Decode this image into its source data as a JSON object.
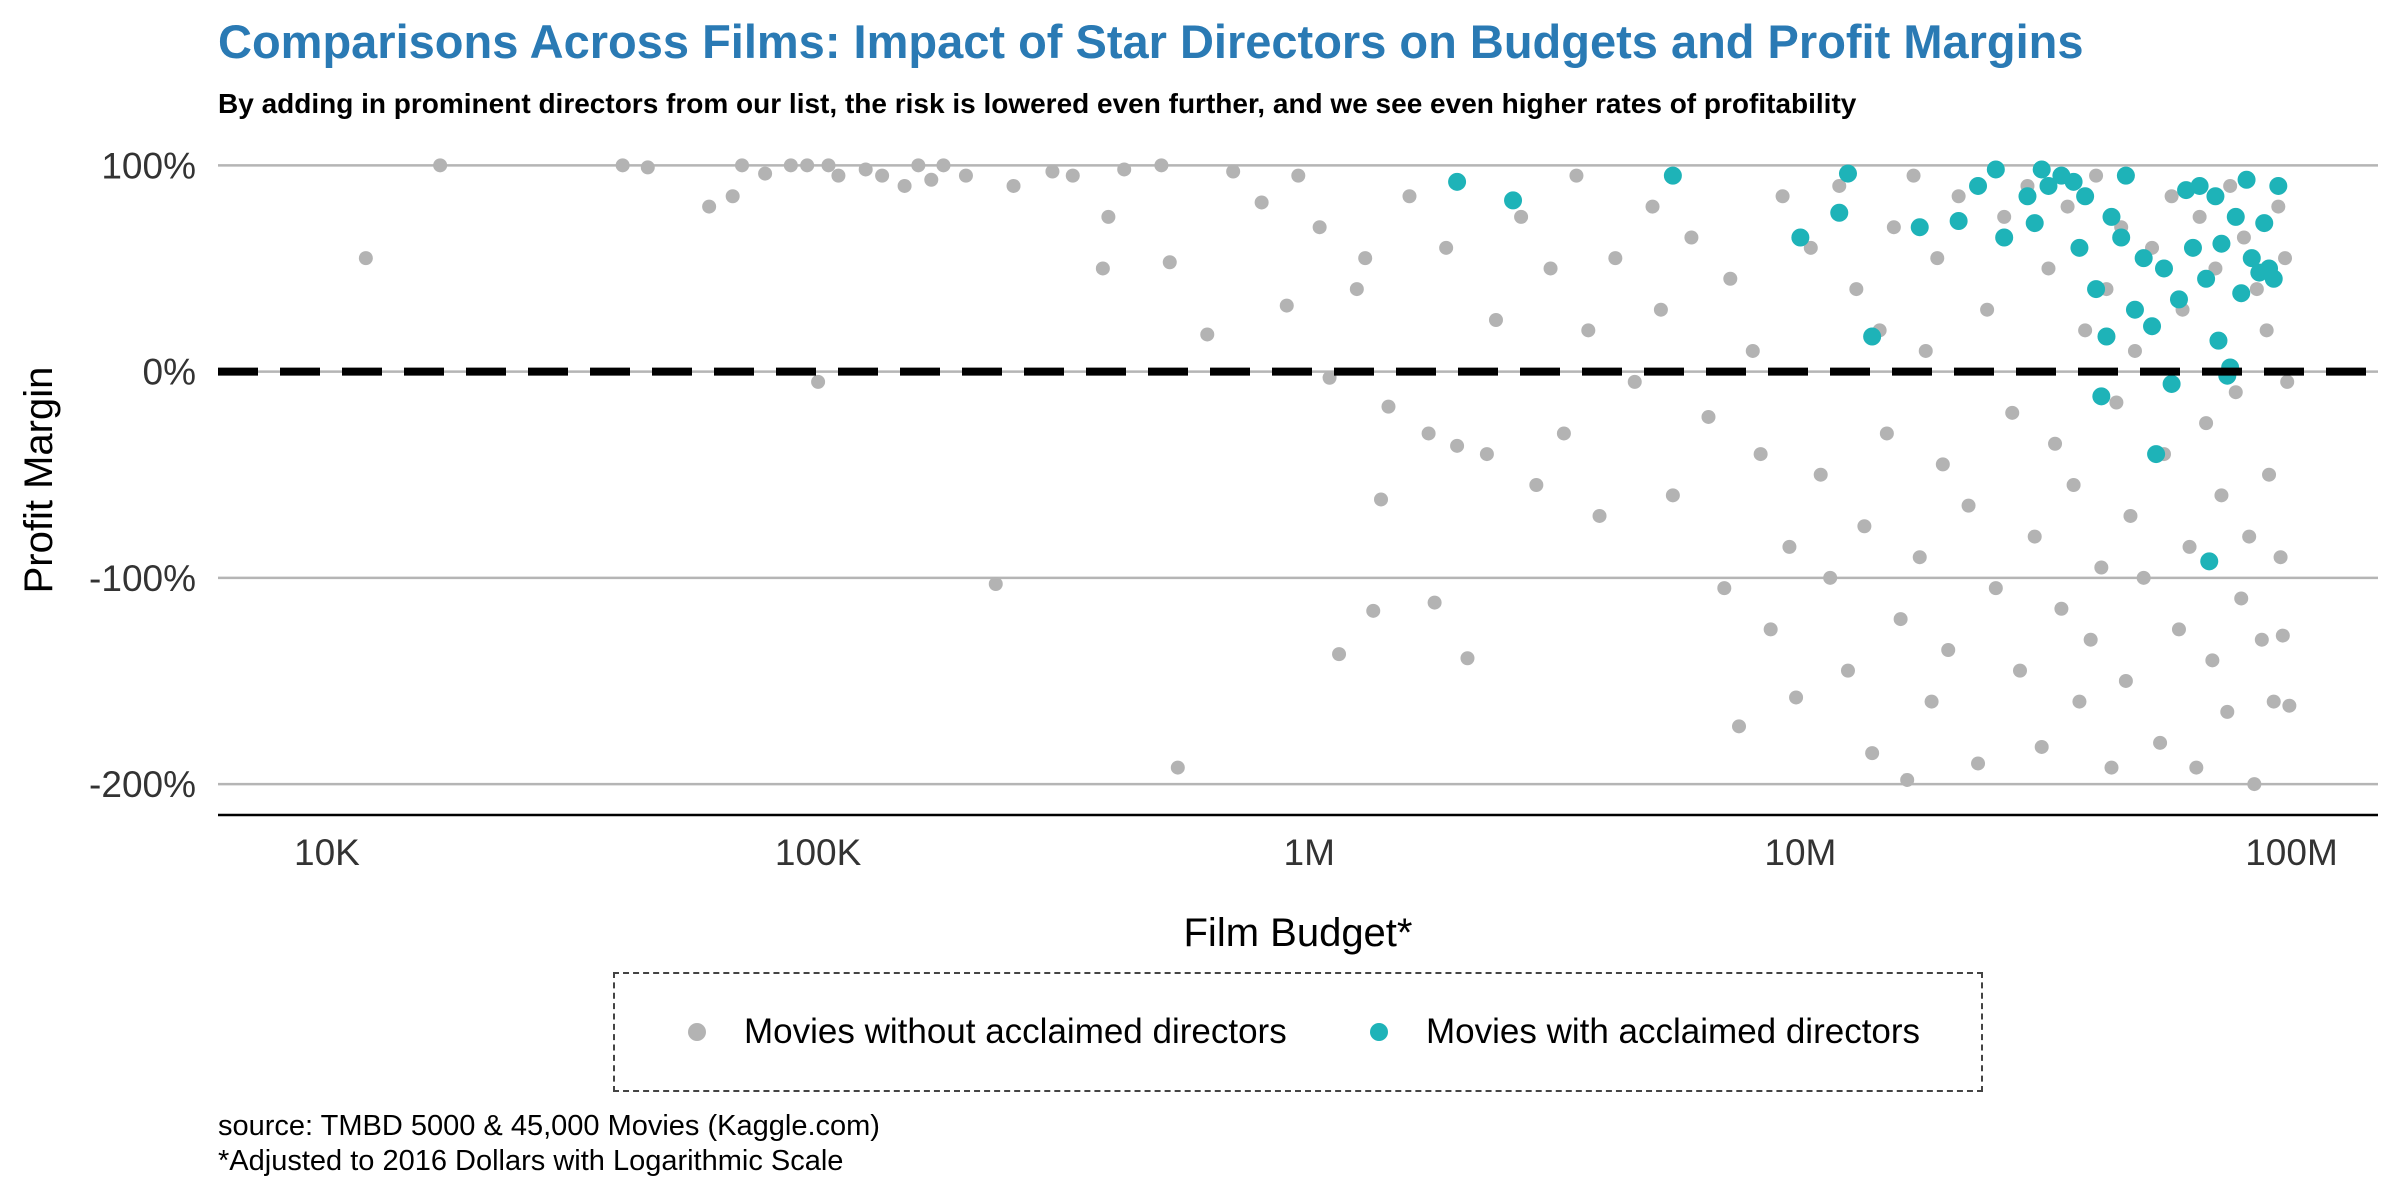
{
  "chart_data": {
    "type": "scatter",
    "title": "Comparisons Across Films: Impact of Star Directors on Budgets and Profit Margins",
    "subtitle": "By adding in prominent directors from our list, the risk is lowered even further, and we see even higher rates of profitability",
    "xlabel": "Film Budget*",
    "ylabel": "Profit Margin",
    "x_scale": "log",
    "xlim": [
      6000,
      150000000
    ],
    "ylim": [
      -2.15,
      1.05
    ],
    "x_ticks": [
      10000,
      100000,
      1000000,
      10000000,
      100000000
    ],
    "x_tick_labels": [
      "10K",
      "100K",
      "1M",
      "10M",
      "100M"
    ],
    "y_ticks": [
      1,
      0,
      -1,
      -2
    ],
    "y_tick_labels": [
      "100%",
      "0%",
      "-100%",
      "-200%"
    ],
    "grid": "horizontal",
    "reference_line": {
      "y": 0,
      "style": "dashed"
    },
    "legend_position": "bottom",
    "colors": {
      "without": "#b3b3b3",
      "with": "#1eb3b8"
    },
    "series": [
      {
        "name": "Movies without acclaimed directors",
        "points": [
          [
            12000,
            0.55
          ],
          [
            17000,
            1.0
          ],
          [
            40000,
            1.0
          ],
          [
            45000,
            0.99
          ],
          [
            60000,
            0.8
          ],
          [
            67000,
            0.85
          ],
          [
            70000,
            1.0
          ],
          [
            78000,
            0.96
          ],
          [
            88000,
            1.0
          ],
          [
            95000,
            1.0
          ],
          [
            100000,
            -0.05
          ],
          [
            105000,
            1.0
          ],
          [
            110000,
            0.95
          ],
          [
            125000,
            0.98
          ],
          [
            135000,
            0.95
          ],
          [
            150000,
            0.9
          ],
          [
            160000,
            1.0
          ],
          [
            170000,
            0.93
          ],
          [
            180000,
            1.0
          ],
          [
            200000,
            0.95
          ],
          [
            230000,
            -1.03
          ],
          [
            250000,
            0.9
          ],
          [
            300000,
            0.97
          ],
          [
            330000,
            0.95
          ],
          [
            380000,
            0.5
          ],
          [
            390000,
            0.75
          ],
          [
            420000,
            0.98
          ],
          [
            500000,
            1.0
          ],
          [
            520000,
            0.53
          ],
          [
            540000,
            -1.92
          ],
          [
            620000,
            0.18
          ],
          [
            700000,
            0.97
          ],
          [
            800000,
            0.82
          ],
          [
            900000,
            0.32
          ],
          [
            950000,
            0.95
          ],
          [
            1050000,
            0.7
          ],
          [
            1100000,
            -0.03
          ],
          [
            1150000,
            -1.37
          ],
          [
            1250000,
            0.4
          ],
          [
            1300000,
            0.55
          ],
          [
            1350000,
            -1.16
          ],
          [
            1400000,
            -0.62
          ],
          [
            1450000,
            -0.17
          ],
          [
            1600000,
            0.85
          ],
          [
            1750000,
            -0.3
          ],
          [
            1800000,
            -1.12
          ],
          [
            1900000,
            0.6
          ],
          [
            2000000,
            -0.36
          ],
          [
            2100000,
            -1.39
          ],
          [
            2300000,
            -0.4
          ],
          [
            2400000,
            0.25
          ],
          [
            2700000,
            0.75
          ],
          [
            2900000,
            -0.55
          ],
          [
            3100000,
            0.5
          ],
          [
            3300000,
            -0.3
          ],
          [
            3500000,
            0.95
          ],
          [
            3700000,
            0.2
          ],
          [
            3900000,
            -0.7
          ],
          [
            4200000,
            0.55
          ],
          [
            4600000,
            -0.05
          ],
          [
            5000000,
            0.8
          ],
          [
            5200000,
            0.3
          ],
          [
            5500000,
            -0.6
          ],
          [
            6000000,
            0.65
          ],
          [
            6500000,
            -0.22
          ],
          [
            7000000,
            -1.05
          ],
          [
            7200000,
            0.45
          ],
          [
            7500000,
            -1.72
          ],
          [
            8000000,
            0.1
          ],
          [
            8300000,
            -0.4
          ],
          [
            8700000,
            -1.25
          ],
          [
            9200000,
            0.85
          ],
          [
            9500000,
            -0.85
          ],
          [
            9800000,
            -1.58
          ],
          [
            10500000,
            0.6
          ],
          [
            11000000,
            -0.5
          ],
          [
            11500000,
            -1.0
          ],
          [
            12000000,
            0.9
          ],
          [
            12500000,
            -1.45
          ],
          [
            13000000,
            0.4
          ],
          [
            13500000,
            -0.75
          ],
          [
            14000000,
            -1.85
          ],
          [
            14500000,
            0.2
          ],
          [
            15000000,
            -0.3
          ],
          [
            15500000,
            0.7
          ],
          [
            16000000,
            -1.2
          ],
          [
            16500000,
            -1.98
          ],
          [
            17000000,
            0.95
          ],
          [
            17500000,
            -0.9
          ],
          [
            18000000,
            0.1
          ],
          [
            18500000,
            -1.6
          ],
          [
            19000000,
            0.55
          ],
          [
            19500000,
            -0.45
          ],
          [
            20000000,
            -1.35
          ],
          [
            21000000,
            0.85
          ],
          [
            22000000,
            -0.65
          ],
          [
            23000000,
            -1.9
          ],
          [
            24000000,
            0.3
          ],
          [
            25000000,
            -1.05
          ],
          [
            26000000,
            0.75
          ],
          [
            27000000,
            -0.2
          ],
          [
            28000000,
            -1.45
          ],
          [
            29000000,
            0.9
          ],
          [
            30000000,
            -0.8
          ],
          [
            31000000,
            -1.82
          ],
          [
            32000000,
            0.5
          ],
          [
            33000000,
            -0.35
          ],
          [
            34000000,
            -1.15
          ],
          [
            35000000,
            0.8
          ],
          [
            36000000,
            -0.55
          ],
          [
            37000000,
            -1.6
          ],
          [
            38000000,
            0.2
          ],
          [
            39000000,
            -1.3
          ],
          [
            40000000,
            0.95
          ],
          [
            41000000,
            -0.95
          ],
          [
            42000000,
            0.4
          ],
          [
            43000000,
            -1.92
          ],
          [
            44000000,
            -0.15
          ],
          [
            45000000,
            0.7
          ],
          [
            46000000,
            -1.5
          ],
          [
            47000000,
            -0.7
          ],
          [
            48000000,
            0.1
          ],
          [
            50000000,
            -1.0
          ],
          [
            52000000,
            0.6
          ],
          [
            54000000,
            -1.8
          ],
          [
            55000000,
            -0.4
          ],
          [
            57000000,
            0.85
          ],
          [
            59000000,
            -1.25
          ],
          [
            60000000,
            0.3
          ],
          [
            62000000,
            -0.85
          ],
          [
            64000000,
            -1.92
          ],
          [
            65000000,
            0.75
          ],
          [
            67000000,
            -0.25
          ],
          [
            69000000,
            -1.4
          ],
          [
            70000000,
            0.5
          ],
          [
            72000000,
            -0.6
          ],
          [
            74000000,
            -1.65
          ],
          [
            75000000,
            0.9
          ],
          [
            77000000,
            -0.1
          ],
          [
            79000000,
            -1.1
          ],
          [
            80000000,
            0.65
          ],
          [
            82000000,
            -0.8
          ],
          [
            84000000,
            -2.0
          ],
          [
            85000000,
            0.4
          ],
          [
            87000000,
            -1.3
          ],
          [
            89000000,
            0.2
          ],
          [
            90000000,
            -0.5
          ],
          [
            92000000,
            -1.6
          ],
          [
            94000000,
            0.8
          ],
          [
            95000000,
            -0.9
          ],
          [
            96000000,
            -1.28
          ],
          [
            97000000,
            0.55
          ],
          [
            98000000,
            -0.05
          ],
          [
            99000000,
            -1.62
          ]
        ]
      },
      {
        "name": "Movies with acclaimed directors",
        "points": [
          [
            2000000,
            0.92
          ],
          [
            2600000,
            0.83
          ],
          [
            5500000,
            0.95
          ],
          [
            10000000,
            0.65
          ],
          [
            12000000,
            0.77
          ],
          [
            12500000,
            0.96
          ],
          [
            14000000,
            0.17
          ],
          [
            17500000,
            0.7
          ],
          [
            21000000,
            0.73
          ],
          [
            23000000,
            0.9
          ],
          [
            25000000,
            0.98
          ],
          [
            26000000,
            0.65
          ],
          [
            29000000,
            0.85
          ],
          [
            30000000,
            0.72
          ],
          [
            31000000,
            0.98
          ],
          [
            32000000,
            0.9
          ],
          [
            34000000,
            0.95
          ],
          [
            36000000,
            0.92
          ],
          [
            37000000,
            0.6
          ],
          [
            38000000,
            0.85
          ],
          [
            40000000,
            0.4
          ],
          [
            41000000,
            -0.12
          ],
          [
            42000000,
            0.17
          ],
          [
            43000000,
            0.75
          ],
          [
            45000000,
            0.65
          ],
          [
            46000000,
            0.95
          ],
          [
            48000000,
            0.3
          ],
          [
            50000000,
            0.55
          ],
          [
            52000000,
            0.22
          ],
          [
            53000000,
            -0.4
          ],
          [
            55000000,
            0.5
          ],
          [
            57000000,
            -0.06
          ],
          [
            59000000,
            0.35
          ],
          [
            61000000,
            0.88
          ],
          [
            63000000,
            0.6
          ],
          [
            65000000,
            0.9
          ],
          [
            67000000,
            0.45
          ],
          [
            68000000,
            -0.92
          ],
          [
            70000000,
            0.85
          ],
          [
            71000000,
            0.15
          ],
          [
            72000000,
            0.62
          ],
          [
            74000000,
            -0.02
          ],
          [
            75000000,
            0.02
          ],
          [
            77000000,
            0.75
          ],
          [
            79000000,
            0.38
          ],
          [
            81000000,
            0.93
          ],
          [
            83000000,
            0.55
          ],
          [
            86000000,
            0.48
          ],
          [
            88000000,
            0.72
          ],
          [
            90000000,
            0.5
          ],
          [
            92000000,
            0.45
          ],
          [
            94000000,
            0.9
          ]
        ]
      }
    ]
  },
  "captions": {
    "source": "source: TMBD 5000 & 45,000 Movies (Kaggle.com)",
    "note": "*Adjusted to 2016 Dollars with Logarithmic Scale"
  }
}
